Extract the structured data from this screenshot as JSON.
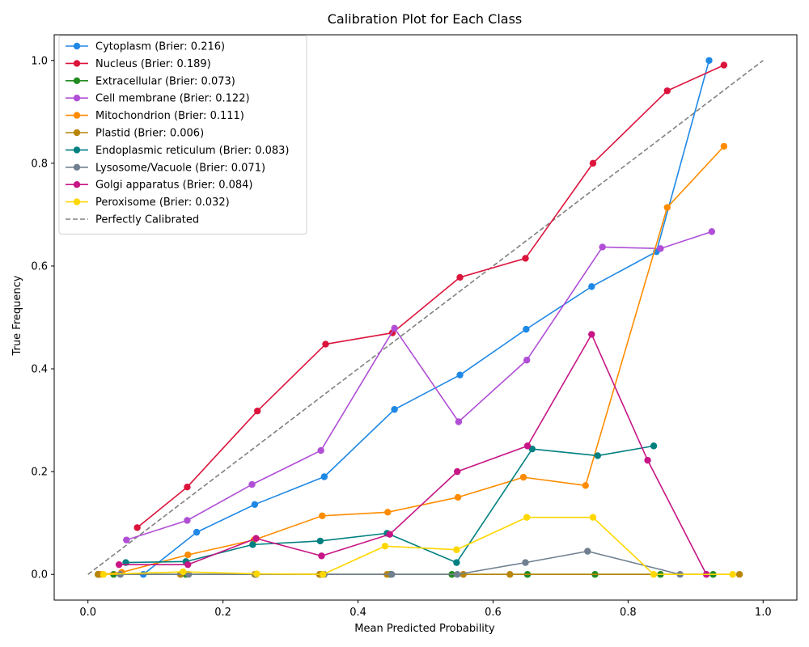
{
  "chart_data": {
    "type": "line",
    "title": "Calibration Plot for Each Class",
    "xlabel": "Mean Predicted Probability",
    "ylabel": "True Frequency",
    "xlim": [
      -0.05,
      1.05
    ],
    "ylim": [
      -0.05,
      1.05
    ],
    "xticks": [
      "0.0",
      "0.2",
      "0.4",
      "0.6",
      "0.8",
      "1.0"
    ],
    "yticks": [
      "0.0",
      "0.2",
      "0.4",
      "0.6",
      "0.8",
      "1.0"
    ],
    "legend_position": "top-left",
    "grid": false,
    "series": [
      {
        "name": "Cytoplasm (Brier: 0.216)",
        "color": "#1e88e5",
        "x": [
          0.082,
          0.161,
          0.247,
          0.35,
          0.454,
          0.551,
          0.649,
          0.746,
          0.842,
          0.92
        ],
        "y": [
          0.0,
          0.082,
          0.136,
          0.19,
          0.321,
          0.388,
          0.477,
          0.56,
          0.628,
          1.0
        ]
      },
      {
        "name": "Nucleus (Brier: 0.189)",
        "color": "#dc143c",
        "x": [
          0.073,
          0.147,
          0.251,
          0.352,
          0.451,
          0.551,
          0.648,
          0.748,
          0.858,
          0.942
        ],
        "y": [
          0.091,
          0.17,
          0.318,
          0.448,
          0.47,
          0.578,
          0.615,
          0.8,
          0.941,
          0.991
        ]
      },
      {
        "name": "Extracellular (Brier: 0.073)",
        "color": "#228b22",
        "x": [
          0.015,
          0.038,
          0.145,
          0.249,
          0.346,
          0.448,
          0.539,
          0.651,
          0.751,
          0.848,
          0.926
        ],
        "y": [
          0,
          0,
          0,
          0,
          0,
          0,
          0,
          0,
          0,
          0,
          0
        ]
      },
      {
        "name": "Cell membrane (Brier: 0.122)",
        "color": "#b04fd6",
        "x": [
          0.057,
          0.147,
          0.243,
          0.345,
          0.454,
          0.549,
          0.65,
          0.762,
          0.848,
          0.924
        ],
        "y": [
          0.067,
          0.105,
          0.175,
          0.241,
          0.479,
          0.297,
          0.417,
          0.637,
          0.634,
          0.667
        ]
      },
      {
        "name": "Mitochondrion (Brier: 0.111)",
        "color": "#ff8c00",
        "x": [
          0.019,
          0.05,
          0.148,
          0.246,
          0.347,
          0.444,
          0.548,
          0.645,
          0.737,
          0.858,
          0.942
        ],
        "y": [
          0.0,
          0.004,
          0.038,
          0.067,
          0.114,
          0.121,
          0.15,
          0.189,
          0.173,
          0.714,
          0.833
        ]
      },
      {
        "name": "Plastid (Brier: 0.006)",
        "color": "#b8860b",
        "x": [
          0.015,
          0.137,
          0.247,
          0.343,
          0.443,
          0.556,
          0.625,
          0.965
        ],
        "y": [
          0,
          0,
          0,
          0,
          0,
          0,
          0,
          0
        ]
      },
      {
        "name": "Endoplasmic reticulum (Brier: 0.083)",
        "color": "#008080",
        "x": [
          0.056,
          0.145,
          0.244,
          0.344,
          0.443,
          0.546,
          0.658,
          0.755,
          0.838
        ],
        "y": [
          0.023,
          0.025,
          0.058,
          0.065,
          0.08,
          0.023,
          0.244,
          0.231,
          0.25
        ]
      },
      {
        "name": "Lysosome/Vacuole (Brier: 0.071)",
        "color": "#708090",
        "x": [
          0.048,
          0.149,
          0.249,
          0.35,
          0.45,
          0.547,
          0.648,
          0.74,
          0.877
        ],
        "y": [
          0.0,
          0.0,
          0.0,
          0.0,
          0.0,
          0.0,
          0.023,
          0.045,
          0.0
        ]
      },
      {
        "name": "Golgi apparatus (Brier: 0.084)",
        "color": "#c71585",
        "x": [
          0.046,
          0.148,
          0.249,
          0.346,
          0.447,
          0.547,
          0.651,
          0.746,
          0.829,
          0.916
        ],
        "y": [
          0.019,
          0.019,
          0.07,
          0.036,
          0.078,
          0.2,
          0.25,
          0.467,
          0.222,
          0.0
        ]
      },
      {
        "name": "Peroxisome (Brier: 0.032)",
        "color": "#ffd700",
        "x": [
          0.023,
          0.141,
          0.25,
          0.348,
          0.44,
          0.546,
          0.65,
          0.748,
          0.838,
          0.955
        ],
        "y": [
          0.0,
          0.005,
          0.001,
          0.0,
          0.055,
          0.048,
          0.111,
          0.111,
          0.0,
          0.0
        ]
      }
    ],
    "reference_line": {
      "name": "Perfectly Calibrated",
      "color": "#808080",
      "x": [
        0,
        1
      ],
      "y": [
        0,
        1
      ]
    }
  }
}
